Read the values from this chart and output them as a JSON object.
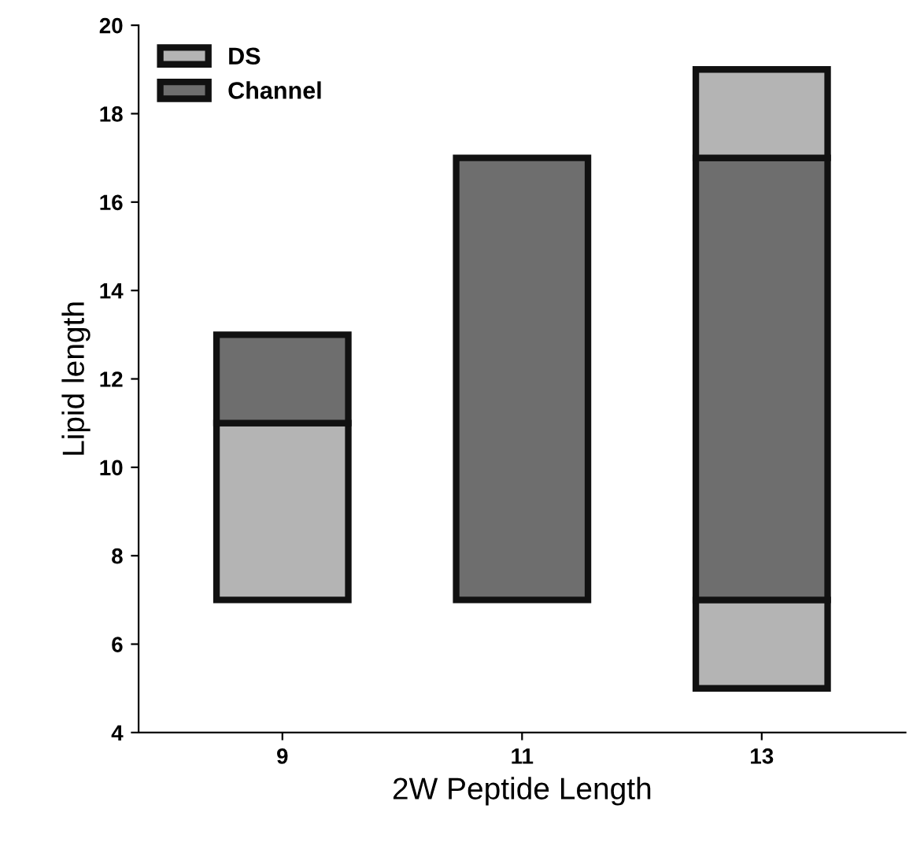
{
  "chart_data": {
    "type": "bar",
    "xlabel": "2W Peptide Length",
    "ylabel": "Lipid length",
    "categories": [
      "9",
      "11",
      "13"
    ],
    "series": [
      {
        "name": "DS",
        "color": "#b4b4b4",
        "base": [
          7,
          null,
          5
        ],
        "values": [
          4,
          null,
          2
        ]
      },
      {
        "name": "Channel",
        "color": "#6e6e6e",
        "base": [
          11,
          7,
          7
        ],
        "values": [
          2,
          10,
          10
        ]
      },
      {
        "color": "#b4b4b4",
        "base": [
          null,
          null,
          17
        ],
        "values": [
          null,
          null,
          2
        ]
      }
    ],
    "ylim": [
      4,
      20
    ],
    "yticks": [
      4,
      6,
      8,
      10,
      12,
      14,
      16,
      18,
      20
    ],
    "grid": false,
    "legend": "top left"
  }
}
